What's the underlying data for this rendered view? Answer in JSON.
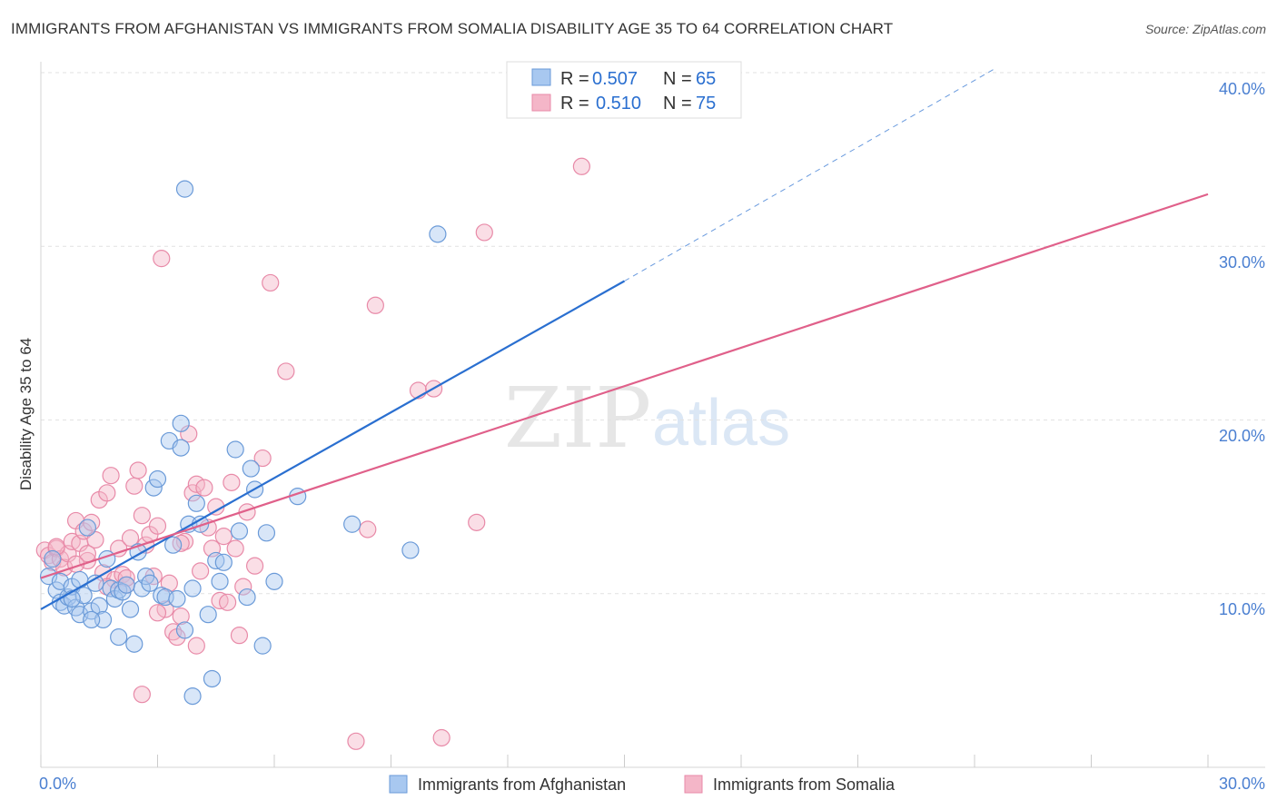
{
  "title": "IMMIGRANTS FROM AFGHANISTAN VS IMMIGRANTS FROM SOMALIA DISABILITY AGE 35 TO 64 CORRELATION CHART",
  "source": "Source: ZipAtlas.com",
  "watermark": {
    "zip": "ZIP",
    "atlas": "atlas"
  },
  "colors": {
    "afghanistan_fill": "#a8c8f0",
    "afghanistan_stroke": "#6a9ad8",
    "afghanistan_line": "#2a6fd0",
    "somalia_fill": "#f4b6c8",
    "somalia_stroke": "#e88aa8",
    "somalia_line": "#e0608a",
    "tick_color": "#4a7fd1",
    "value_color": "#2a6fd0"
  },
  "legend": {
    "r_label": "R =",
    "n_label": "N =",
    "rows": [
      {
        "r": "0.507",
        "n": "65"
      },
      {
        "r": "0.510",
        "n": "75"
      }
    ]
  },
  "chart_data": {
    "type": "scatter",
    "title": "IMMIGRANTS FROM AFGHANISTAN VS IMMIGRANTS FROM SOMALIA DISABILITY AGE 35 TO 64 CORRELATION CHART",
    "xlabel": "",
    "ylabel": "Disability Age 35 to 64",
    "xlim": [
      0,
      30
    ],
    "ylim": [
      0,
      40
    ],
    "x_tick_labels": [
      "0.0%",
      "30.0%"
    ],
    "y_tick_labels": [
      "10.0%",
      "20.0%",
      "30.0%",
      "40.0%"
    ],
    "y_ticks": [
      10,
      20,
      30,
      40
    ],
    "grid": true,
    "legend_position": "top-center",
    "series": [
      {
        "name": "Immigrants from Afghanistan",
        "r": 0.507,
        "n": 65,
        "trend": {
          "x0": 0,
          "y0": 9.1,
          "x1": 15,
          "y1": 28.0,
          "dash_x1": 24.5,
          "dash_y1": 40.2
        },
        "points": [
          [
            0.2,
            11.0
          ],
          [
            0.3,
            12.0
          ],
          [
            0.4,
            10.2
          ],
          [
            0.5,
            9.5
          ],
          [
            0.5,
            10.7
          ],
          [
            0.6,
            9.3
          ],
          [
            0.7,
            9.8
          ],
          [
            0.8,
            10.4
          ],
          [
            0.9,
            9.2
          ],
          [
            1.0,
            8.8
          ],
          [
            1.0,
            10.8
          ],
          [
            1.1,
            9.9
          ],
          [
            1.2,
            13.8
          ],
          [
            1.3,
            9.0
          ],
          [
            1.4,
            10.6
          ],
          [
            1.5,
            9.3
          ],
          [
            1.6,
            8.5
          ],
          [
            1.7,
            12.0
          ],
          [
            1.8,
            10.3
          ],
          [
            1.9,
            9.7
          ],
          [
            2.0,
            10.2
          ],
          [
            2.1,
            10.1
          ],
          [
            2.2,
            10.5
          ],
          [
            2.3,
            9.1
          ],
          [
            2.4,
            7.1
          ],
          [
            2.5,
            12.4
          ],
          [
            2.6,
            10.3
          ],
          [
            2.7,
            11.0
          ],
          [
            2.8,
            10.6
          ],
          [
            2.9,
            16.1
          ],
          [
            3.0,
            16.6
          ],
          [
            3.1,
            9.9
          ],
          [
            3.2,
            9.8
          ],
          [
            3.3,
            18.8
          ],
          [
            3.4,
            12.8
          ],
          [
            3.5,
            9.7
          ],
          [
            3.6,
            18.4
          ],
          [
            3.7,
            7.9
          ],
          [
            3.8,
            14.0
          ],
          [
            3.9,
            10.3
          ],
          [
            4.0,
            15.2
          ],
          [
            4.1,
            14.0
          ],
          [
            3.6,
            19.8
          ],
          [
            3.9,
            4.1
          ],
          [
            4.3,
            8.8
          ],
          [
            4.4,
            5.1
          ],
          [
            4.5,
            11.9
          ],
          [
            4.6,
            10.7
          ],
          [
            4.7,
            11.8
          ],
          [
            5.0,
            18.3
          ],
          [
            5.1,
            13.6
          ],
          [
            5.3,
            9.8
          ],
          [
            5.4,
            17.2
          ],
          [
            5.5,
            16.0
          ],
          [
            5.8,
            13.5
          ],
          [
            5.7,
            7.0
          ],
          [
            6.0,
            10.7
          ],
          [
            6.6,
            15.6
          ],
          [
            8.0,
            14.0
          ],
          [
            9.5,
            12.5
          ],
          [
            10.2,
            30.7
          ],
          [
            3.7,
            33.3
          ],
          [
            1.3,
            8.5
          ],
          [
            0.8,
            9.7
          ],
          [
            2.0,
            7.5
          ]
        ]
      },
      {
        "name": "Immigrants from Somalia",
        "r": 0.51,
        "n": 75,
        "trend": {
          "x0": 0,
          "y0": 10.9,
          "x1": 30,
          "y1": 33.0
        },
        "points": [
          [
            0.1,
            12.5
          ],
          [
            0.2,
            12.2
          ],
          [
            0.3,
            11.8
          ],
          [
            0.4,
            12.6
          ],
          [
            0.5,
            12.0
          ],
          [
            0.6,
            11.5
          ],
          [
            0.7,
            12.3
          ],
          [
            0.8,
            13.0
          ],
          [
            0.9,
            14.2
          ],
          [
            1.0,
            12.9
          ],
          [
            1.1,
            13.6
          ],
          [
            1.2,
            11.9
          ],
          [
            1.3,
            14.1
          ],
          [
            1.4,
            13.1
          ],
          [
            1.5,
            15.4
          ],
          [
            1.6,
            11.2
          ],
          [
            1.7,
            15.8
          ],
          [
            1.8,
            16.8
          ],
          [
            1.9,
            10.8
          ],
          [
            2.0,
            12.6
          ],
          [
            2.1,
            11.1
          ],
          [
            2.2,
            10.5
          ],
          [
            2.3,
            13.2
          ],
          [
            2.4,
            16.2
          ],
          [
            2.5,
            17.1
          ],
          [
            2.6,
            14.5
          ],
          [
            2.7,
            12.8
          ],
          [
            2.8,
            13.4
          ],
          [
            2.9,
            11.0
          ],
          [
            3.0,
            13.9
          ],
          [
            3.1,
            29.3
          ],
          [
            3.2,
            9.1
          ],
          [
            3.3,
            10.6
          ],
          [
            3.4,
            7.8
          ],
          [
            3.5,
            7.5
          ],
          [
            3.6,
            8.7
          ],
          [
            3.7,
            13.0
          ],
          [
            3.8,
            19.2
          ],
          [
            3.9,
            15.8
          ],
          [
            4.0,
            16.3
          ],
          [
            4.1,
            11.3
          ],
          [
            4.2,
            16.1
          ],
          [
            4.3,
            13.8
          ],
          [
            4.4,
            12.6
          ],
          [
            4.5,
            15.0
          ],
          [
            4.6,
            9.6
          ],
          [
            4.7,
            13.3
          ],
          [
            4.8,
            9.5
          ],
          [
            4.9,
            16.4
          ],
          [
            5.0,
            12.6
          ],
          [
            5.1,
            7.6
          ],
          [
            5.2,
            10.4
          ],
          [
            5.5,
            11.6
          ],
          [
            5.7,
            17.8
          ],
          [
            5.9,
            27.9
          ],
          [
            6.3,
            22.8
          ],
          [
            8.1,
            1.5
          ],
          [
            8.4,
            13.7
          ],
          [
            8.6,
            26.6
          ],
          [
            9.7,
            21.7
          ],
          [
            10.1,
            21.8
          ],
          [
            10.3,
            1.7
          ],
          [
            11.2,
            14.1
          ],
          [
            11.4,
            30.8
          ],
          [
            13.9,
            34.6
          ],
          [
            2.6,
            4.2
          ],
          [
            3.0,
            8.9
          ],
          [
            1.2,
            12.3
          ],
          [
            0.4,
            12.7
          ],
          [
            0.9,
            11.7
          ],
          [
            2.2,
            10.9
          ],
          [
            4.0,
            7.0
          ],
          [
            5.3,
            14.7
          ],
          [
            3.6,
            12.9
          ],
          [
            1.7,
            10.4
          ]
        ]
      }
    ]
  },
  "bottom_legend": [
    {
      "label": "Immigrants from Afghanistan"
    },
    {
      "label": "Immigrants from Somalia"
    }
  ]
}
